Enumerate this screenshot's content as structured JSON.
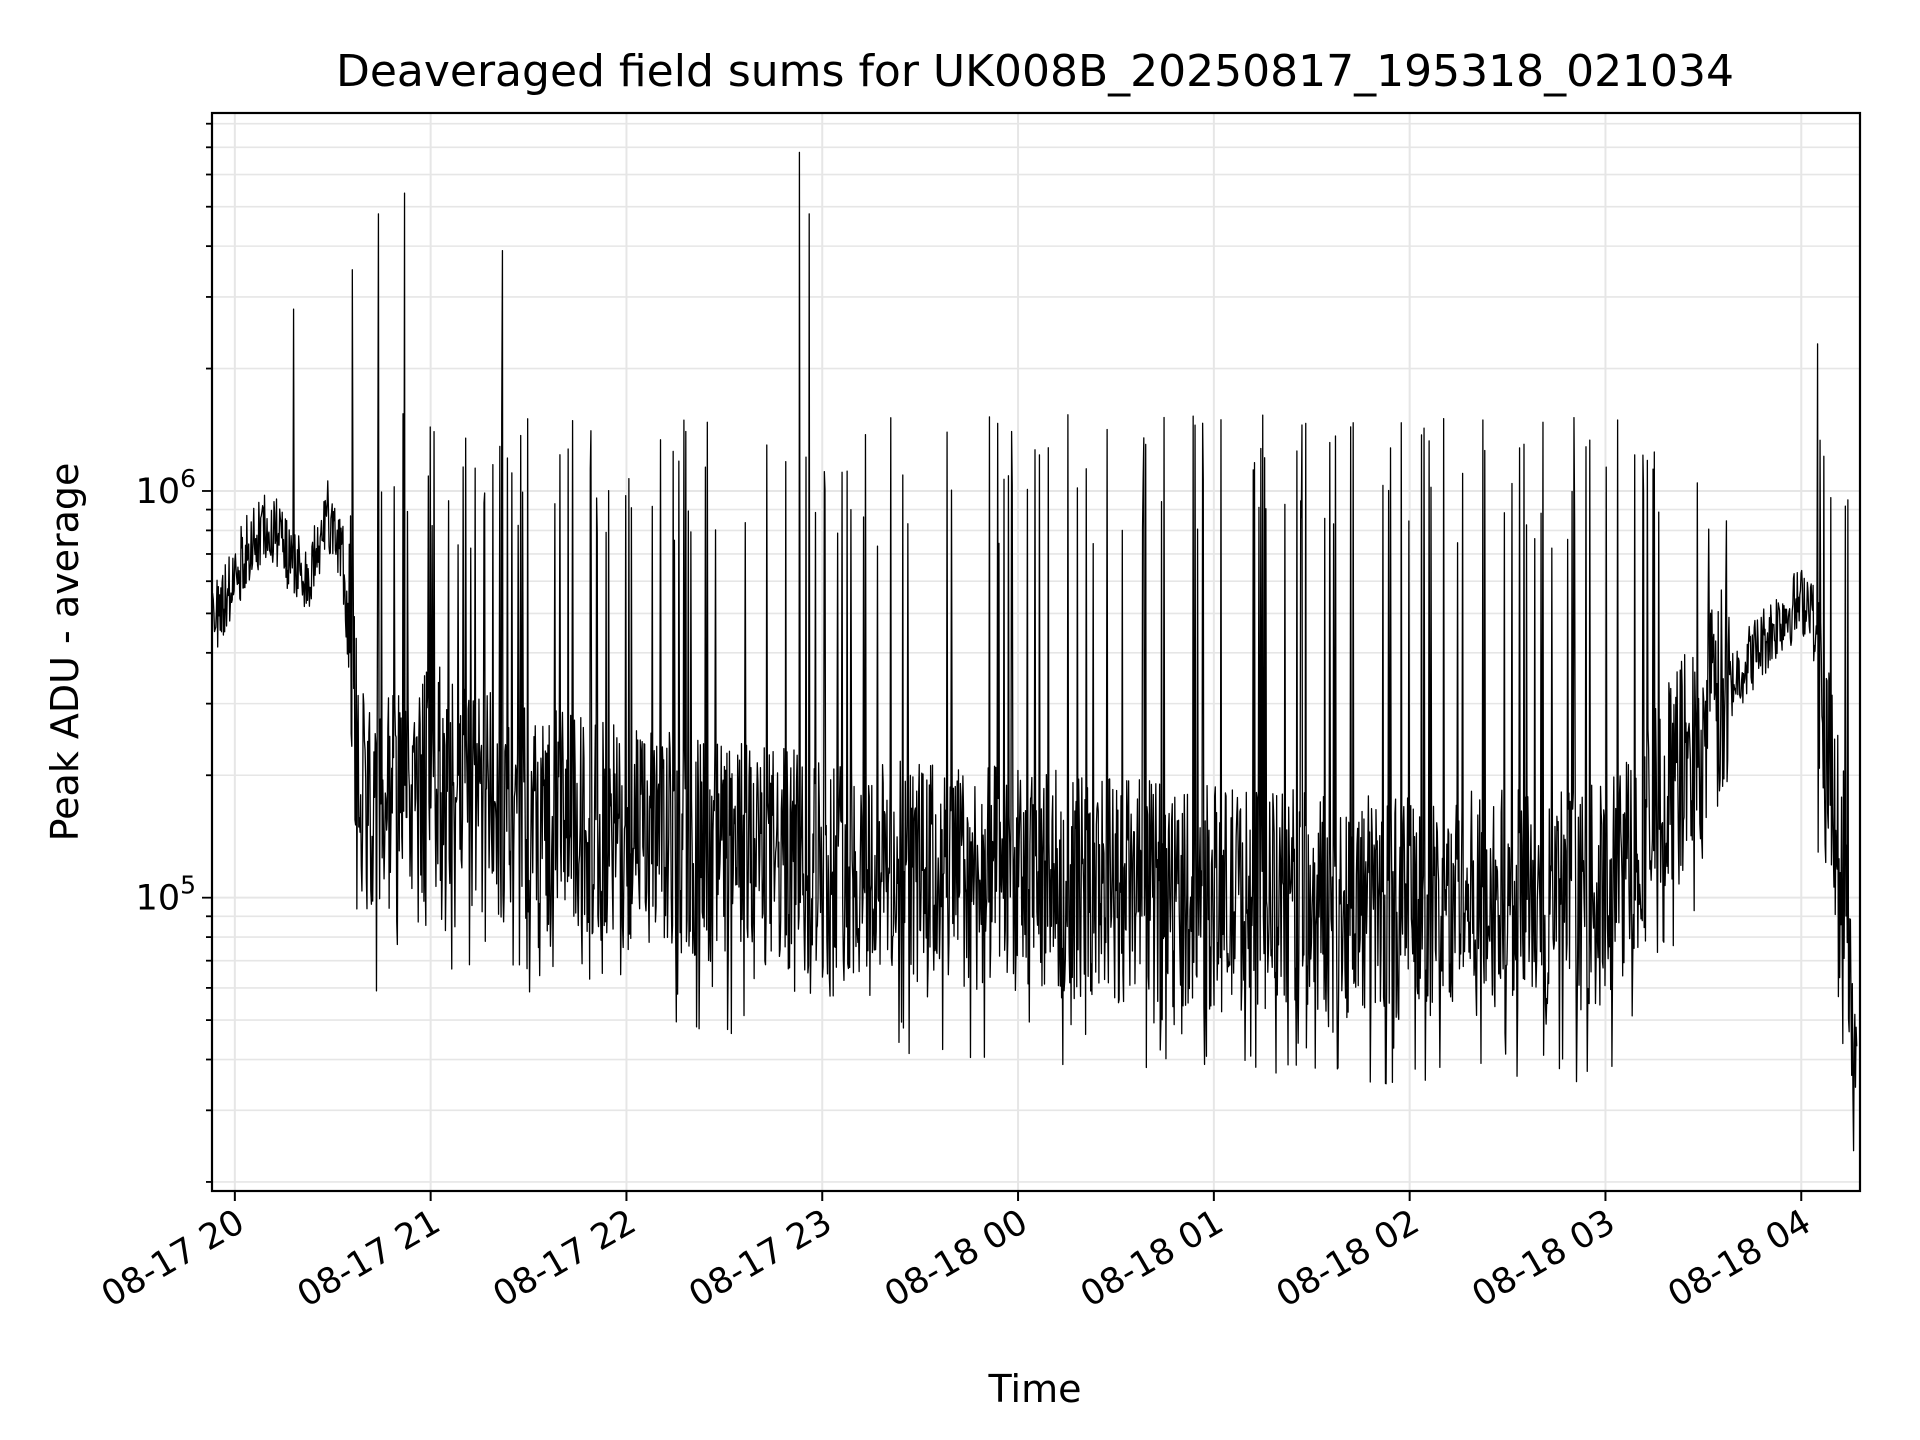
{
  "chart_data": {
    "type": "line",
    "title": "Deaveraged field sums for UK008B_20250817_195318_021034",
    "xlabel": "Time",
    "ylabel": "Peak ADU - average",
    "yscale": "log",
    "ylim": [
      19000,
      8500000
    ],
    "xlim": [
      "2025-08-17 19:53",
      "2025-08-18 04:18"
    ],
    "grid": true,
    "x_ticks": [
      "08-17 20",
      "08-17 21",
      "08-17 22",
      "08-17 23",
      "08-18 00",
      "08-18 01",
      "08-18 02",
      "08-18 03",
      "08-18 04"
    ],
    "y_ticks": [
      {
        "base": "10",
        "exp": "5",
        "value": 100000
      },
      {
        "base": "10",
        "exp": "6",
        "value": 1000000
      }
    ],
    "line_color": "#000000",
    "series": [
      {
        "values_note_free": true,
        "points": [
          [
            "2025-08-17 19:53",
            480000
          ],
          [
            "2025-08-17 19:58",
            560000
          ],
          [
            "2025-08-17 20:03",
            700000
          ],
          [
            "2025-08-17 20:08",
            800000
          ],
          [
            "2025-08-17 20:13",
            780000
          ],
          [
            "2025-08-17 20:18",
            650000
          ],
          [
            "2025-08-17 20:23",
            600000
          ],
          [
            "2025-08-17 20:28",
            900000
          ],
          [
            "2025-08-17 20:33",
            700000
          ],
          [
            "2025-08-17 20:38",
            200000
          ],
          [
            "2025-08-17 20:43",
            160000
          ],
          [
            "2025-08-17 20:50",
            180000
          ],
          [
            "2025-08-17 21:00",
            200000
          ],
          [
            "2025-08-17 21:15",
            170000
          ],
          [
            "2025-08-17 21:30",
            160000
          ],
          [
            "2025-08-17 22:00",
            140000
          ],
          [
            "2025-08-17 22:30",
            130000
          ],
          [
            "2025-08-17 23:00",
            120000
          ],
          [
            "2025-08-18 00:00",
            110000
          ],
          [
            "2025-08-18 01:00",
            100000
          ],
          [
            "2025-08-18 02:00",
            95000
          ],
          [
            "2025-08-18 03:00",
            100000
          ],
          [
            "2025-08-18 03:40",
            350000
          ],
          [
            "2025-08-18 03:55",
            500000
          ],
          [
            "2025-08-18 04:03",
            550000
          ],
          [
            "2025-08-18 04:06",
            300000
          ],
          [
            "2025-08-18 04:10",
            180000
          ],
          [
            "2025-08-18 04:14",
            100000
          ],
          [
            "2025-08-18 04:17",
            30000
          ]
        ],
        "peaks": [
          [
            "2025-08-17 20:18",
            2800000
          ],
          [
            "2025-08-17 20:36",
            3500000
          ],
          [
            "2025-08-17 20:44",
            4800000
          ],
          [
            "2025-08-17 20:52",
            5400000
          ],
          [
            "2025-08-17 21:22",
            3900000
          ],
          [
            "2025-08-17 22:53",
            6800000
          ],
          [
            "2025-08-17 22:56",
            4800000
          ],
          [
            "2025-08-18 04:05",
            2300000
          ]
        ]
      }
    ]
  }
}
